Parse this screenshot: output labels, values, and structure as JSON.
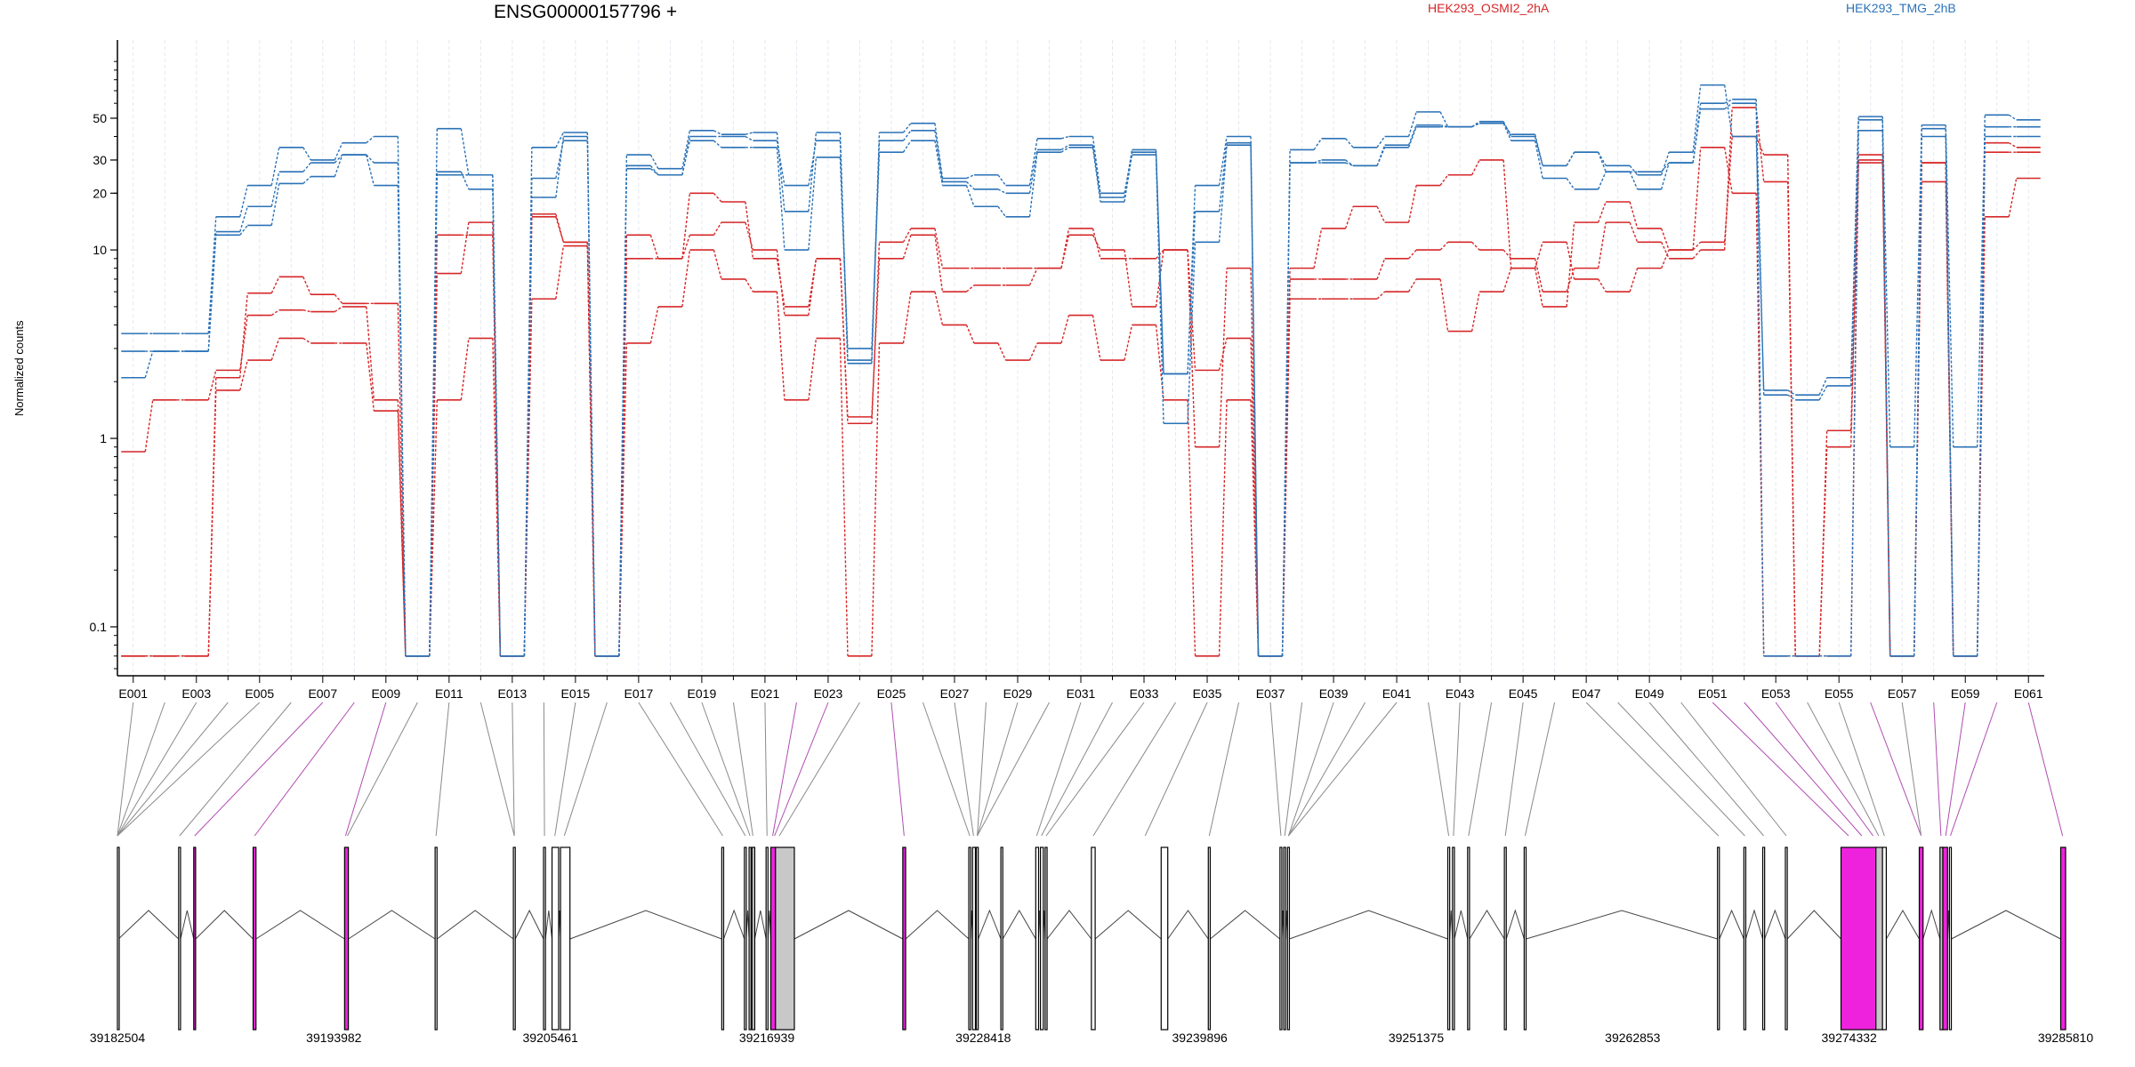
{
  "chart_data": {
    "type": "line",
    "title": "ENSG00000157796 +",
    "ylabel": "Normalized counts",
    "yscale": "log",
    "yticks": [
      0.1,
      1,
      10,
      20,
      30,
      50
    ],
    "ytick_labels": [
      "0.1",
      "1",
      "10",
      "20",
      "30",
      "50"
    ],
    "colors": {
      "HEK293_OSMI2_2hA": "#d62728",
      "HEK293_TMG_2hB": "#2a72b7",
      "highlight": "#ee22dd",
      "grey_exon": "#c8c8c8"
    },
    "legend": [
      {
        "label": "HEK293_OSMI2_2hA",
        "color": "#d62728"
      },
      {
        "label": "HEK293_TMG_2hB",
        "color": "#2a72b7"
      }
    ],
    "exons": [
      "E001",
      "E002",
      "E003",
      "E004",
      "E005",
      "E006",
      "E007",
      "E008",
      "E009",
      "E010",
      "E011",
      "E012",
      "E013",
      "E014",
      "E015",
      "E016",
      "E017",
      "E018",
      "E019",
      "E020",
      "E021",
      "E022",
      "E023",
      "E024",
      "E025",
      "E026",
      "E027",
      "E028",
      "E029",
      "E030",
      "E031",
      "E032",
      "E033",
      "E034",
      "E035",
      "E036",
      "E037",
      "E038",
      "E039",
      "E040",
      "E041",
      "E042",
      "E043",
      "E044",
      "E045",
      "E046",
      "E047",
      "E048",
      "E049",
      "E050",
      "E051",
      "E052",
      "E053",
      "E054",
      "E055",
      "E056",
      "E057",
      "E058",
      "E059",
      "E060",
      "E061"
    ],
    "exon_labels": [
      "E001",
      "E003",
      "E005",
      "E007",
      "E009",
      "E011",
      "E013",
      "E015",
      "E017",
      "E019",
      "E021",
      "E023",
      "E025",
      "E027",
      "E029",
      "E031",
      "E033",
      "E035",
      "E037",
      "E039",
      "E041",
      "E043",
      "E045",
      "E047",
      "E049",
      "E051",
      "E053",
      "E055",
      "E057",
      "E059",
      "E061"
    ],
    "series": [
      {
        "name": "HEK293_OSMI2_2hA",
        "color": "#d62728",
        "values": [
          0.85,
          1.6,
          1.6,
          2.3,
          4.5,
          4.8,
          4.7,
          5.0,
          1.6,
          0.07,
          7.5,
          14,
          0.07,
          15,
          11,
          0.07,
          12,
          9,
          20,
          18,
          9,
          5,
          9,
          1.2,
          11,
          13,
          8,
          8,
          8,
          8,
          13,
          9,
          9,
          10,
          0.9,
          8,
          0.07,
          8,
          13,
          17,
          14,
          22,
          25,
          30,
          8,
          5,
          14,
          18,
          13,
          10,
          11,
          40,
          32,
          0.07,
          0.9,
          32,
          0.07,
          29,
          0.07,
          37,
          35
        ]
      },
      {
        "name": "HEK293_OSMI2_2hA",
        "color": "#d62728",
        "values": [
          0.07,
          0.07,
          0.07,
          2.1,
          5.9,
          7.2,
          5.8,
          5.2,
          5.2,
          0.07,
          12,
          12,
          0.07,
          15.5,
          11,
          0.07,
          9,
          9,
          12,
          14,
          10,
          4.5,
          9,
          1.3,
          9,
          12,
          6,
          6.5,
          6.5,
          8,
          12,
          10,
          5,
          10,
          2.3,
          3.4,
          0.07,
          7,
          7,
          7,
          9,
          10,
          11,
          10,
          9,
          6,
          8,
          14,
          11,
          9,
          10,
          57,
          23,
          0.07,
          1.1,
          29,
          0.07,
          29,
          0.07,
          33,
          33
        ]
      },
      {
        "name": "HEK293_OSMI2_2hA",
        "color": "#d62728",
        "values": [
          0.07,
          0.07,
          0.07,
          1.8,
          2.6,
          3.4,
          3.2,
          3.2,
          1.4,
          0.07,
          1.6,
          3.4,
          0.07,
          5.5,
          10.5,
          0.07,
          3.2,
          5,
          10,
          7,
          6,
          1.6,
          3.4,
          0.07,
          3.2,
          6,
          4,
          3.2,
          2.6,
          3.2,
          4.5,
          2.6,
          4,
          1.6,
          0.07,
          1.6,
          0.07,
          5.5,
          5.5,
          5.5,
          6,
          7,
          3.7,
          6,
          8,
          11,
          7,
          6,
          8,
          10,
          35,
          20,
          0.07,
          0.07,
          0.07,
          30,
          0.07,
          23,
          0.07,
          15,
          24
        ]
      },
      {
        "name": "HEK293_TMG_2hB",
        "color": "#2a72b7",
        "values": [
          3.6,
          3.6,
          3.6,
          15,
          22,
          35,
          30,
          37,
          40,
          0.07,
          44,
          25,
          0.07,
          35,
          42,
          0.07,
          32,
          27,
          43,
          41,
          42,
          16,
          42,
          2.6,
          42,
          47,
          24,
          25,
          22,
          39,
          40,
          20,
          33,
          2.2,
          22,
          40,
          0.07,
          34,
          39,
          35,
          40,
          54,
          45,
          48,
          40,
          28,
          33,
          28,
          25,
          33,
          75,
          40,
          1.8,
          1.7,
          2.1,
          51,
          0.07,
          44,
          0.07,
          52,
          49
        ]
      },
      {
        "name": "HEK293_TMG_2hB",
        "color": "#2a72b7",
        "values": [
          2.9,
          2.9,
          2.9,
          12.5,
          17,
          26,
          29,
          32,
          29,
          0.07,
          25,
          25,
          0.07,
          24,
          38,
          0.07,
          27,
          25,
          40,
          40,
          38,
          22,
          38,
          2.5,
          38,
          43,
          23,
          21,
          20,
          34,
          36,
          19,
          34,
          2.2,
          16,
          37,
          0.07,
          29,
          30,
          28,
          36,
          46,
          45,
          47,
          41,
          28,
          33,
          26,
          26,
          29,
          56,
          60,
          1.7,
          1.6,
          1.9,
          49,
          0.9,
          46,
          0.9,
          45,
          45
        ]
      },
      {
        "name": "HEK293_TMG_2hB",
        "color": "#2a72b7",
        "values": [
          2.1,
          2.9,
          2.9,
          12,
          13.5,
          22.5,
          24.5,
          32,
          22,
          0.07,
          26,
          21,
          0.07,
          19,
          40,
          0.07,
          28,
          25,
          38,
          35,
          35,
          10,
          31,
          3.0,
          33,
          38,
          22,
          17,
          15,
          33,
          35,
          18,
          32,
          1.2,
          11,
          36,
          0.07,
          29,
          29,
          28,
          35,
          45,
          45,
          47,
          38,
          24,
          21,
          26,
          21,
          29,
          60,
          63,
          0.07,
          0.07,
          0.07,
          43,
          0.07,
          40,
          0.07,
          40,
          40
        ]
      }
    ],
    "genome_ticks": [
      "39182504",
      "39193982",
      "39205461",
      "39216939",
      "39228418",
      "39239896",
      "39251375",
      "39262853",
      "39274332",
      "39285810"
    ],
    "gene_start": 39182504,
    "gene_end": 39285810,
    "exon_blocks": [
      {
        "start": 39182504,
        "end": 39182560,
        "fill": "white"
      },
      {
        "start": 39185750,
        "end": 39185850,
        "fill": "white"
      },
      {
        "start": 39186550,
        "end": 39186650,
        "fill": "highlight"
      },
      {
        "start": 39189700,
        "end": 39189850,
        "fill": "highlight"
      },
      {
        "start": 39194550,
        "end": 39194750,
        "fill": "highlight"
      },
      {
        "start": 39199350,
        "end": 39199450,
        "fill": "white"
      },
      {
        "start": 39203500,
        "end": 39203600,
        "fill": "white"
      },
      {
        "start": 39205100,
        "end": 39205200,
        "fill": "white"
      },
      {
        "start": 39205550,
        "end": 39205900,
        "fill": "white"
      },
      {
        "start": 39206000,
        "end": 39206500,
        "fill": "white"
      },
      {
        "start": 39214550,
        "end": 39214650,
        "fill": "white"
      },
      {
        "start": 39215750,
        "end": 39215850,
        "fill": "white"
      },
      {
        "start": 39216000,
        "end": 39216100,
        "fill": "white"
      },
      {
        "start": 39216150,
        "end": 39216300,
        "fill": "grey"
      },
      {
        "start": 39216900,
        "end": 39217000,
        "fill": "white"
      },
      {
        "start": 39217150,
        "end": 39217400,
        "fill": "highlight"
      },
      {
        "start": 39217400,
        "end": 39218400,
        "fill": "grey"
      },
      {
        "start": 39224150,
        "end": 39224300,
        "fill": "highlight"
      },
      {
        "start": 39227650,
        "end": 39227750,
        "fill": "white"
      },
      {
        "start": 39227850,
        "end": 39228000,
        "fill": "white"
      },
      {
        "start": 39228050,
        "end": 39228150,
        "fill": "white"
      },
      {
        "start": 39229350,
        "end": 39229450,
        "fill": "white"
      },
      {
        "start": 39231200,
        "end": 39231350,
        "fill": "white"
      },
      {
        "start": 39231450,
        "end": 39231600,
        "fill": "white"
      },
      {
        "start": 39231700,
        "end": 39231800,
        "fill": "white"
      },
      {
        "start": 39234150,
        "end": 39234350,
        "fill": "white"
      },
      {
        "start": 39237850,
        "end": 39238200,
        "fill": "white"
      },
      {
        "start": 39240350,
        "end": 39240450,
        "fill": "white"
      },
      {
        "start": 39244150,
        "end": 39244250,
        "fill": "white"
      },
      {
        "start": 39244350,
        "end": 39244450,
        "fill": "white"
      },
      {
        "start": 39244550,
        "end": 39244650,
        "fill": "white"
      },
      {
        "start": 39253050,
        "end": 39253150,
        "fill": "white"
      },
      {
        "start": 39253300,
        "end": 39253400,
        "fill": "white"
      },
      {
        "start": 39254100,
        "end": 39254200,
        "fill": "white"
      },
      {
        "start": 39256050,
        "end": 39256150,
        "fill": "white"
      },
      {
        "start": 39257100,
        "end": 39257200,
        "fill": "white"
      },
      {
        "start": 39267350,
        "end": 39267450,
        "fill": "white"
      },
      {
        "start": 39268750,
        "end": 39268850,
        "fill": "white"
      },
      {
        "start": 39269750,
        "end": 39269850,
        "fill": "white"
      },
      {
        "start": 39270950,
        "end": 39271050,
        "fill": "white"
      },
      {
        "start": 39273900,
        "end": 39275750,
        "fill": "highlight"
      },
      {
        "start": 39275750,
        "end": 39276100,
        "fill": "grey"
      },
      {
        "start": 39276100,
        "end": 39276300,
        "fill": "white"
      },
      {
        "start": 39278050,
        "end": 39278250,
        "fill": "highlight"
      },
      {
        "start": 39279150,
        "end": 39279300,
        "fill": "grey"
      },
      {
        "start": 39279300,
        "end": 39279550,
        "fill": "highlight"
      },
      {
        "start": 39279650,
        "end": 39279750,
        "fill": "white"
      },
      {
        "start": 39285550,
        "end": 39285810,
        "fill": "highlight"
      }
    ],
    "exon_links": [
      {
        "exon": "E001",
        "pos": 39182504,
        "hl": false
      },
      {
        "exon": "E002",
        "pos": 39182504,
        "hl": false
      },
      {
        "exon": "E003",
        "pos": 39182504,
        "hl": false
      },
      {
        "exon": "E004",
        "pos": 39182504,
        "hl": false
      },
      {
        "exon": "E005",
        "pos": 39182504,
        "hl": false
      },
      {
        "exon": "E006",
        "pos": 39185800,
        "hl": false
      },
      {
        "exon": "E007",
        "pos": 39186600,
        "hl": true
      },
      {
        "exon": "E008",
        "pos": 39189780,
        "hl": true
      },
      {
        "exon": "E009",
        "pos": 39194600,
        "hl": true
      },
      {
        "exon": "E010",
        "pos": 39194700,
        "hl": false
      },
      {
        "exon": "E011",
        "pos": 39199400,
        "hl": false
      },
      {
        "exon": "E012",
        "pos": 39203550,
        "hl": false
      },
      {
        "exon": "E013",
        "pos": 39203550,
        "hl": false
      },
      {
        "exon": "E014",
        "pos": 39205150,
        "hl": false
      },
      {
        "exon": "E015",
        "pos": 39205700,
        "hl": false
      },
      {
        "exon": "E016",
        "pos": 39206200,
        "hl": false
      },
      {
        "exon": "E017",
        "pos": 39214600,
        "hl": false
      },
      {
        "exon": "E018",
        "pos": 39215800,
        "hl": false
      },
      {
        "exon": "E019",
        "pos": 39216050,
        "hl": false
      },
      {
        "exon": "E020",
        "pos": 39216200,
        "hl": false
      },
      {
        "exon": "E021",
        "pos": 39216950,
        "hl": false
      },
      {
        "exon": "E022",
        "pos": 39217250,
        "hl": true
      },
      {
        "exon": "E023",
        "pos": 39217350,
        "hl": true
      },
      {
        "exon": "E024",
        "pos": 39217600,
        "hl": false
      },
      {
        "exon": "E025",
        "pos": 39224220,
        "hl": true
      },
      {
        "exon": "E026",
        "pos": 39227700,
        "hl": false
      },
      {
        "exon": "E027",
        "pos": 39227900,
        "hl": false
      },
      {
        "exon": "E028",
        "pos": 39228100,
        "hl": false
      },
      {
        "exon": "E029",
        "pos": 39228100,
        "hl": false
      },
      {
        "exon": "E030",
        "pos": 39228100,
        "hl": false
      },
      {
        "exon": "E031",
        "pos": 39231250,
        "hl": false
      },
      {
        "exon": "E032",
        "pos": 39231500,
        "hl": false
      },
      {
        "exon": "E033",
        "pos": 39231750,
        "hl": false
      },
      {
        "exon": "E034",
        "pos": 39234250,
        "hl": false
      },
      {
        "exon": "E035",
        "pos": 39237000,
        "hl": false
      },
      {
        "exon": "E036",
        "pos": 39240400,
        "hl": false
      },
      {
        "exon": "E037",
        "pos": 39244200,
        "hl": false
      },
      {
        "exon": "E038",
        "pos": 39244400,
        "hl": false
      },
      {
        "exon": "E039",
        "pos": 39244600,
        "hl": false
      },
      {
        "exon": "E040",
        "pos": 39244600,
        "hl": false
      },
      {
        "exon": "E041",
        "pos": 39244600,
        "hl": false
      },
      {
        "exon": "E042",
        "pos": 39253100,
        "hl": false
      },
      {
        "exon": "E043",
        "pos": 39253350,
        "hl": false
      },
      {
        "exon": "E044",
        "pos": 39254150,
        "hl": false
      },
      {
        "exon": "E045",
        "pos": 39256100,
        "hl": false
      },
      {
        "exon": "E046",
        "pos": 39257150,
        "hl": false
      },
      {
        "exon": "E047",
        "pos": 39267400,
        "hl": false
      },
      {
        "exon": "E048",
        "pos": 39268800,
        "hl": false
      },
      {
        "exon": "E049",
        "pos": 39269800,
        "hl": false
      },
      {
        "exon": "E050",
        "pos": 39271000,
        "hl": false
      },
      {
        "exon": "E051",
        "pos": 39274300,
        "hl": true
      },
      {
        "exon": "E052",
        "pos": 39275000,
        "hl": true
      },
      {
        "exon": "E053",
        "pos": 39275600,
        "hl": true
      },
      {
        "exon": "E054",
        "pos": 39275900,
        "hl": false
      },
      {
        "exon": "E055",
        "pos": 39276200,
        "hl": false
      },
      {
        "exon": "E056",
        "pos": 39278150,
        "hl": true
      },
      {
        "exon": "E057",
        "pos": 39278150,
        "hl": false
      },
      {
        "exon": "E058",
        "pos": 39279200,
        "hl": true
      },
      {
        "exon": "E059",
        "pos": 39279450,
        "hl": true
      },
      {
        "exon": "E060",
        "pos": 39279700,
        "hl": true
      },
      {
        "exon": "E061",
        "pos": 39285650,
        "hl": true
      }
    ]
  }
}
